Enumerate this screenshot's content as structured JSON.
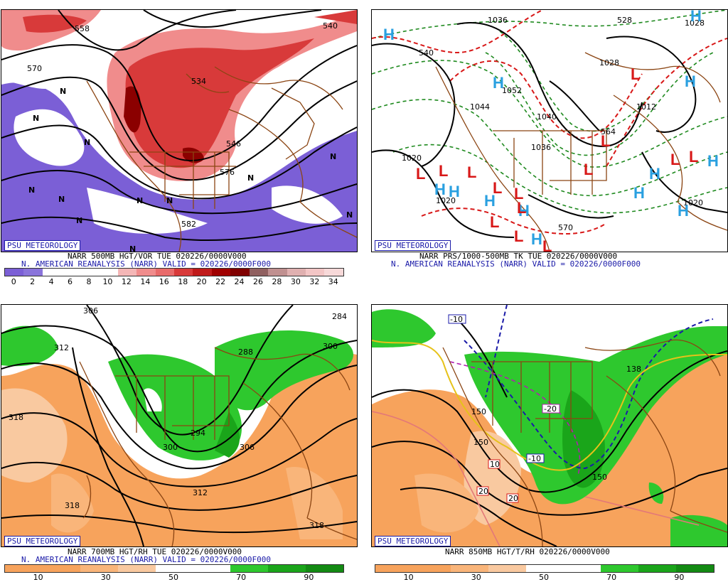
{
  "colors": {
    "purple": "#7b5fd6",
    "red": "#d83a3a",
    "pink": "#f08c8c",
    "green": "#22b822",
    "orange": "#f7a35c",
    "brown": "#8b4513",
    "navy": "#1a1aa8",
    "cyan": "#2aa0e0"
  },
  "badge": "PSU METEOROLOGY",
  "panels": [
    {
      "caption1": "NARR 500MB HGT/VOR TUE 020226/0000V000",
      "caption2": "N. AMERICAN REANALYSIS (NARR) VALID = 020226/0000F000",
      "colorbar": [
        "#7b5fd6",
        "#8a74db",
        "#ffffff",
        "#ffffff",
        "#ffffff",
        "#ffffff",
        "#f4b6b6",
        "#f08c8c",
        "#e86a6a",
        "#d83a3a",
        "#c01a1a",
        "#a00000",
        "#800000",
        "#906060",
        "#c09090",
        "#e0b0b0",
        "#f3c6c6",
        "#f7d9d9"
      ],
      "ticks": [
        "0",
        "2",
        "4",
        "6",
        "8",
        "10",
        "12",
        "14",
        "16",
        "18",
        "20",
        "22",
        "24",
        "26",
        "28",
        "30",
        "32",
        "34"
      ],
      "contour_labels": [
        "558",
        "570",
        "540",
        "534",
        "546",
        "582",
        "576"
      ],
      "marks": [
        "N",
        "N",
        "N",
        "N",
        "N",
        "N",
        "N",
        "N",
        "N",
        "N",
        "N",
        "N"
      ]
    },
    {
      "caption1": "NARR PRS/1000-500MB TK TUE 020226/0000V000",
      "caption2": "N. AMERICAN REANALYSIS (NARR) VALID = 020226/0000F000",
      "contour_labels": [
        "1036",
        "1028",
        "1020",
        "1044",
        "1052",
        "1040",
        "1036",
        "1028",
        "1012",
        "1020",
        "1020",
        "540",
        "570",
        "528",
        "564"
      ],
      "highs": [
        "H",
        "H",
        "H",
        "H",
        "H",
        "H",
        "H",
        "H",
        "H",
        "H",
        "H",
        "H",
        "H"
      ],
      "lows": [
        "L",
        "L",
        "L",
        "L",
        "L",
        "L",
        "L",
        "L",
        "L",
        "L",
        "L",
        "L",
        "L",
        "L"
      ]
    },
    {
      "caption1": "NARR 700MB HGT/RH TUE 020226/0000V000",
      "caption2": "N. AMERICAN REANALYSIS (NARR) VALID = 020226/0000F000",
      "colorbar_colors": [
        "#f7a35c",
        "#f7a35c",
        "#f9b57a",
        "#f9c9a0",
        "#ffffff",
        "#ffffff",
        "#2ec82e",
        "#1aa51a",
        "#138a13"
      ],
      "ticks": [
        "10",
        "30",
        "50",
        "70",
        "90"
      ],
      "contour_labels": [
        "306",
        "312",
        "318",
        "288",
        "300",
        "294",
        "300",
        "306",
        "312",
        "318",
        "318",
        "284"
      ]
    },
    {
      "caption1": "NARR 850MB HGT/T/RH 020226/0000V000",
      "colorbar_colors": [
        "#f7a35c",
        "#f7a35c",
        "#f9b57a",
        "#f9c9a0",
        "#ffffff",
        "#ffffff",
        "#2ec82e",
        "#1aa51a",
        "#138a13"
      ],
      "ticks": [
        "10",
        "30",
        "50",
        "70",
        "90"
      ],
      "contour_labels": [
        "138",
        "150",
        "150",
        "150",
        "10",
        "20",
        "20"
      ],
      "boxed_labels": [
        "-10",
        "-20",
        "-10",
        "10",
        "20",
        "20"
      ]
    }
  ]
}
